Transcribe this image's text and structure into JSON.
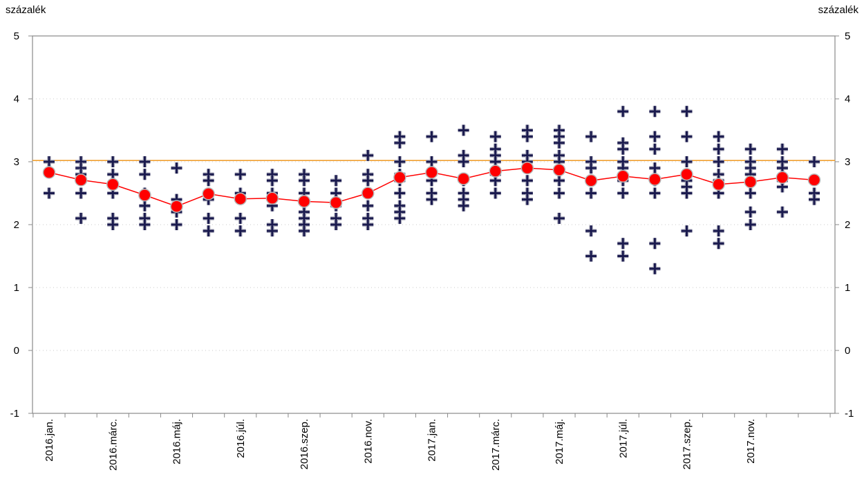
{
  "chart_data": {
    "type": "scatter",
    "left_axis_unit": "százalék",
    "right_axis_unit": "százalék",
    "ylim": [
      -1,
      5
    ],
    "y_ticks": [
      -1,
      0,
      1,
      2,
      3,
      4,
      5
    ],
    "x_tick_labels": [
      "2016.jan.",
      "2016.márc.",
      "2016.máj.",
      "2016.júl.",
      "2016.szep.",
      "2016.nov.",
      "2017.jan.",
      "2017.márc.",
      "2017.máj.",
      "2017.júl.",
      "2017.szep.",
      "2017.nov."
    ],
    "x_tick_positions": [
      0,
      2,
      4,
      6,
      8,
      10,
      12,
      14,
      16,
      18,
      20,
      22
    ],
    "reference_line": {
      "value": 3.02,
      "color": "#f0a030"
    },
    "grid": "horizontal dotted",
    "colors": {
      "median_line": "#ff0000",
      "median_marker": "#ff0000",
      "forecast_marker": "#1a1a4e",
      "axis": "#888888"
    },
    "series": [
      {
        "values": [
          [
            3.0,
            2.5
          ],
          [
            3.0,
            2.9,
            2.8,
            2.5,
            2.1
          ],
          [
            3.0,
            2.8,
            2.5,
            2.1,
            2.0
          ],
          [
            3.0,
            2.8,
            2.5,
            2.3,
            2.1,
            2.0
          ],
          [
            2.9,
            2.4,
            2.2,
            2.0
          ],
          [
            2.8,
            2.7,
            2.5,
            2.4,
            2.1,
            1.9
          ],
          [
            2.8,
            2.5,
            2.4,
            2.1,
            1.9
          ],
          [
            2.8,
            2.7,
            2.5,
            2.3,
            2.0,
            1.9
          ],
          [
            2.8,
            2.7,
            2.5,
            2.4,
            2.2,
            2.1,
            2.0,
            1.9
          ],
          [
            2.7,
            2.5,
            2.3,
            2.1,
            2.0
          ],
          [
            3.1,
            2.8,
            2.7,
            2.5,
            2.3,
            2.1,
            2.0
          ],
          [
            3.4,
            3.3,
            3.0,
            2.8,
            2.7,
            2.5,
            2.3,
            2.2,
            2.1
          ],
          [
            3.4,
            3.0,
            2.8,
            2.7,
            2.5,
            2.4
          ],
          [
            3.5,
            3.1,
            3.0,
            2.7,
            2.5,
            2.4,
            2.3
          ],
          [
            3.4,
            3.2,
            3.1,
            3.0,
            2.8,
            2.7,
            2.5
          ],
          [
            3.5,
            3.4,
            3.1,
            3.0,
            2.7,
            2.5,
            2.4
          ],
          [
            3.5,
            3.4,
            3.3,
            3.1,
            3.0,
            2.7,
            2.5,
            2.1
          ],
          [
            3.4,
            3.0,
            2.9,
            2.5,
            1.9,
            1.5
          ],
          [
            3.8,
            3.3,
            3.2,
            3.0,
            2.9,
            2.7,
            2.5,
            1.7,
            1.5
          ],
          [
            3.8,
            3.4,
            3.2,
            2.9,
            2.7,
            2.5,
            1.7,
            1.3
          ],
          [
            3.8,
            3.4,
            3.0,
            2.8,
            2.7,
            2.6,
            2.5,
            1.9
          ],
          [
            3.4,
            3.2,
            3.0,
            2.8,
            2.7,
            2.5,
            1.9,
            1.7
          ],
          [
            3.2,
            3.0,
            2.9,
            2.8,
            2.7,
            2.5,
            2.2,
            2.0
          ],
          [
            3.2,
            3.0,
            2.9,
            2.7,
            2.6,
            2.2
          ],
          [
            3.0,
            2.7,
            2.5,
            2.4
          ]
        ]
      },
      {
        "values": [
          2.83,
          2.71,
          2.64,
          2.47,
          2.29,
          2.49,
          2.41,
          2.42,
          2.37,
          2.35,
          2.5,
          2.75,
          2.83,
          2.73,
          2.85,
          2.9,
          2.87,
          2.7,
          2.77,
          2.72,
          2.8,
          2.64,
          2.68,
          2.75,
          2.71
        ]
      }
    ]
  }
}
